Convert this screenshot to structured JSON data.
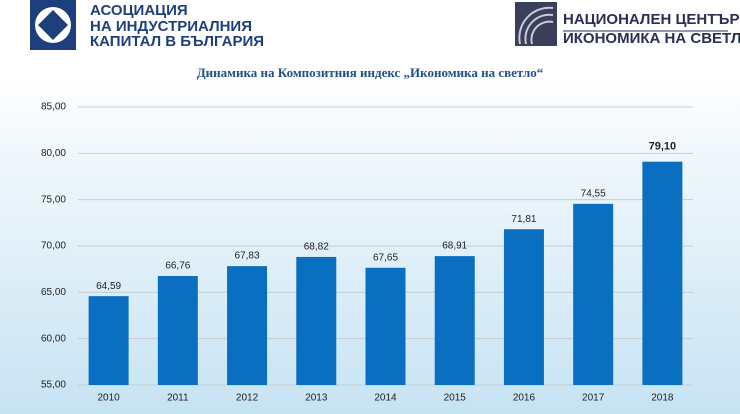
{
  "logos": {
    "left": [
      "АСОЦИАЦИЯ",
      "НА ИНДУСТРИАЛНИЯ",
      "КАПИТАЛ В БЪЛГАРИЯ"
    ],
    "right": [
      "НАЦИОНАЛЕН ЦЕНТЪР",
      "ИКОНОМИКА НА СВЕТЛО"
    ]
  },
  "chart_data": {
    "type": "bar",
    "title": "Динамика на Композитния индекс „Икономика на светло“",
    "categories": [
      "2010",
      "2011",
      "2012",
      "2013",
      "2014",
      "2015",
      "2016",
      "2017",
      "2018"
    ],
    "values": [
      64.59,
      66.76,
      67.83,
      68.82,
      67.65,
      68.91,
      71.81,
      74.55,
      79.1
    ],
    "value_labels": [
      "64,59",
      "66,76",
      "67,83",
      "68,82",
      "67,65",
      "68,91",
      "71,81",
      "74,55",
      "79,10"
    ],
    "color": "#0b6fc1",
    "ylim": [
      55,
      85
    ],
    "yticks": [
      {
        "value": 55,
        "label": "55,00"
      },
      {
        "value": 60,
        "label": "60,00"
      },
      {
        "value": 65,
        "label": "65,00"
      },
      {
        "value": 70,
        "label": "70,00"
      },
      {
        "value": 75,
        "label": "75,00"
      },
      {
        "value": 80,
        "label": "80,00"
      },
      {
        "value": 85,
        "label": "85,00"
      }
    ],
    "grid": true
  }
}
